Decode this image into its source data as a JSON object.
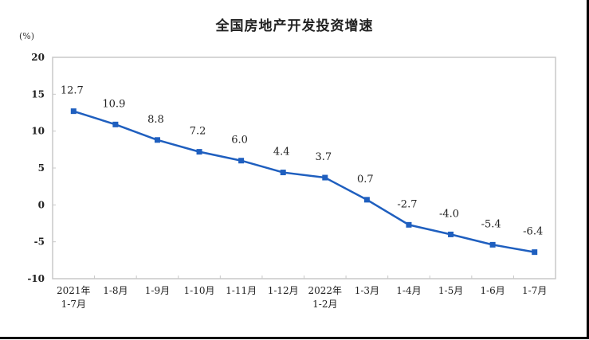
{
  "chart_data": {
    "type": "line",
    "title": "全国房地产开发投资增速",
    "ylabel": "(%)",
    "xlabel": "",
    "ylim": [
      -10,
      20
    ],
    "yticks": [
      20,
      15,
      10,
      5,
      0,
      -5,
      -10
    ],
    "grid": false,
    "legend": null,
    "categories": [
      [
        "2021年",
        "1-7月"
      ],
      [
        "1-8月"
      ],
      [
        "1-9月"
      ],
      [
        "1-10月"
      ],
      [
        "1-11月"
      ],
      [
        "1-12月"
      ],
      [
        "2022年",
        "1-2月"
      ],
      [
        "1-3月"
      ],
      [
        "1-4月"
      ],
      [
        "1-5月"
      ],
      [
        "1-6月"
      ],
      [
        "1-7月"
      ]
    ],
    "series": [
      {
        "name": "全国房地产开发投资增速",
        "color": "#1f5fbf",
        "values": [
          12.7,
          10.9,
          8.8,
          7.2,
          6.0,
          4.4,
          3.7,
          0.7,
          -2.7,
          -4.0,
          -5.4,
          -6.4
        ],
        "labels": [
          "12.7",
          "10.9",
          "8.8",
          "7.2",
          "6.0",
          "4.4",
          "3.7",
          "0.7",
          "-2.7",
          "-4.0",
          "-5.4",
          "-6.4"
        ]
      }
    ]
  }
}
